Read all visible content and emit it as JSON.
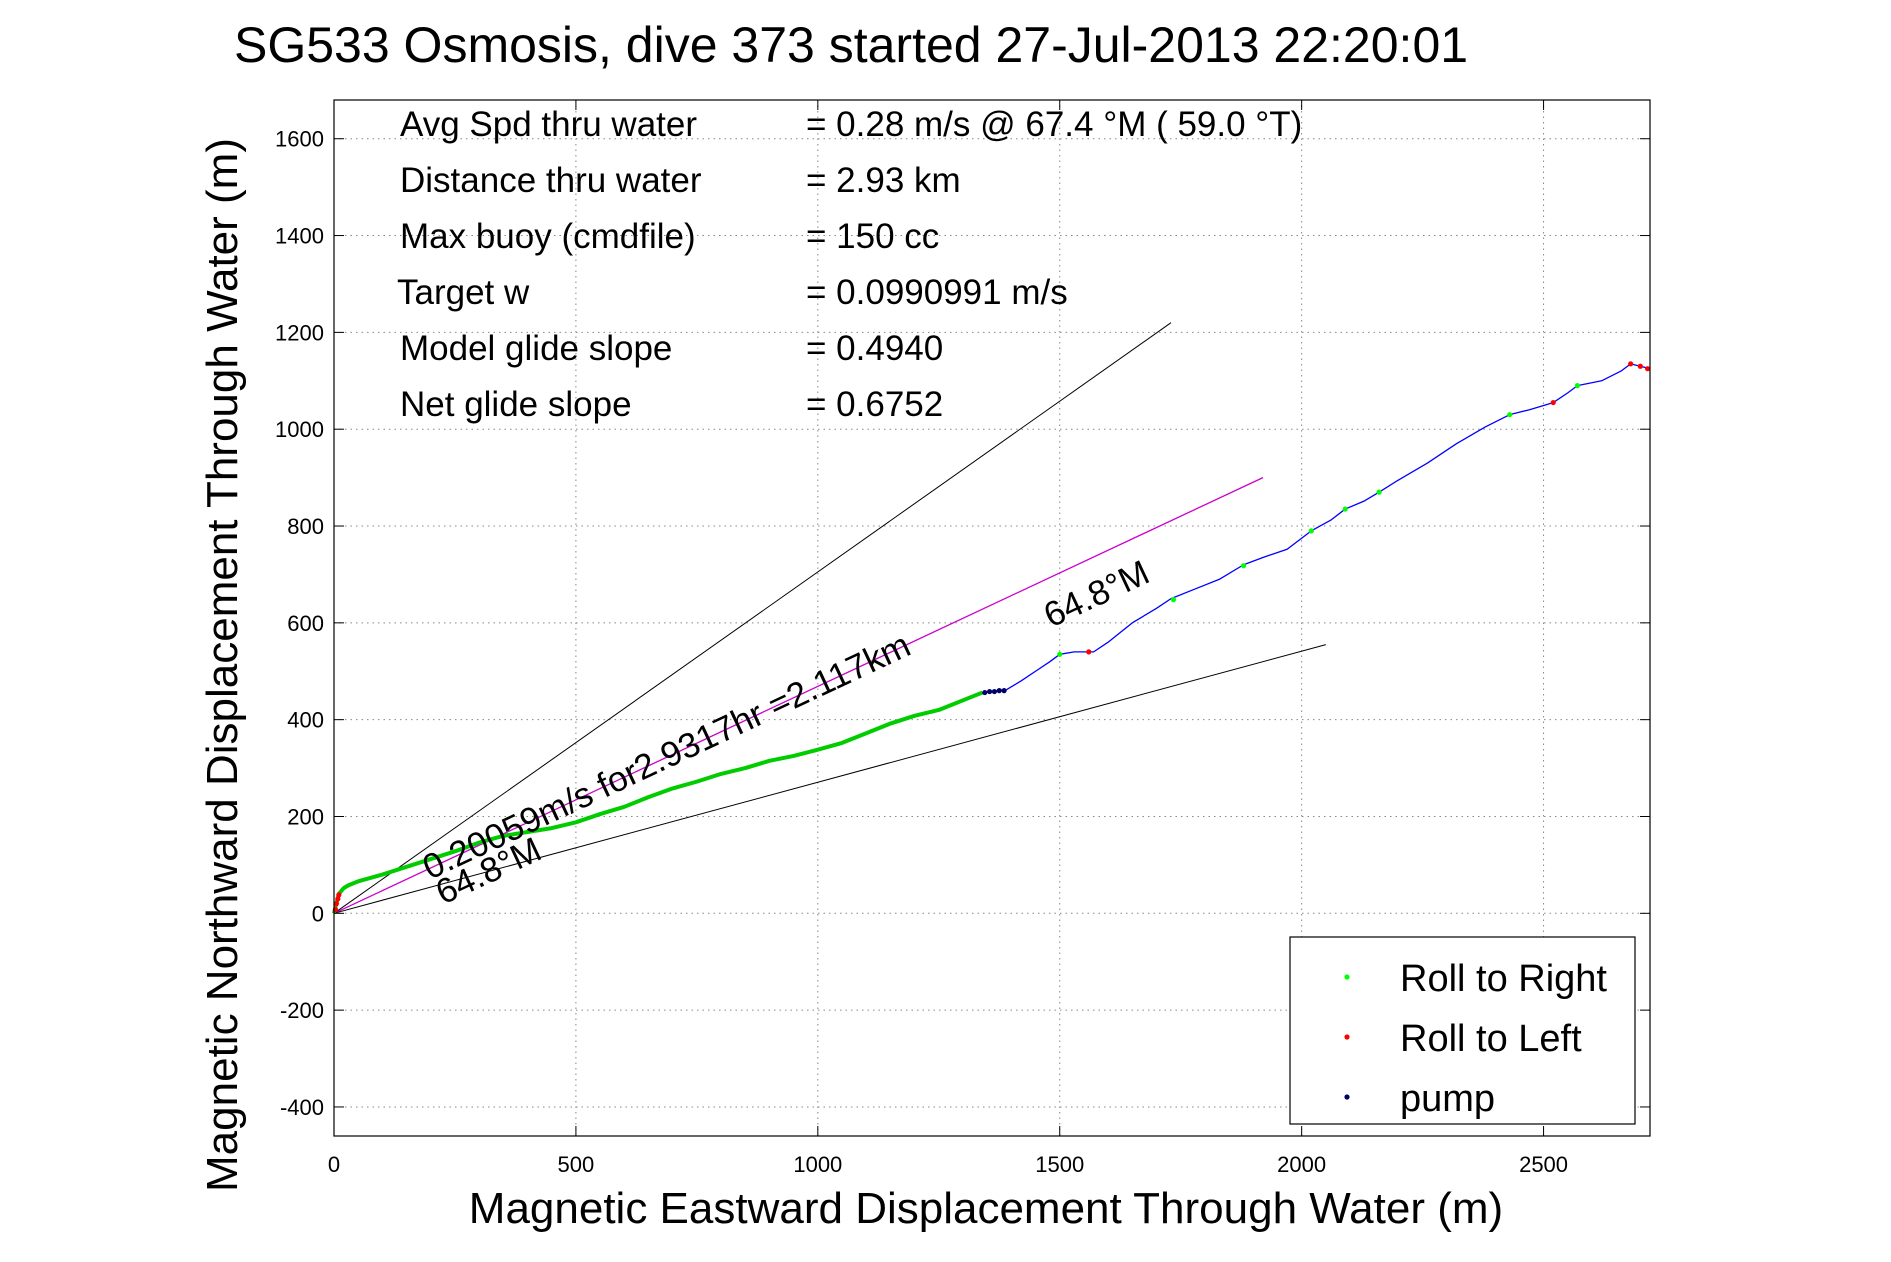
{
  "title": "SG533 Osmosis, dive 373 started 27-Jul-2013 22:20:01",
  "chart_data": {
    "type": "line",
    "title": "SG533 Osmosis, dive 373 started 27-Jul-2013 22:20:01",
    "xlabel": "Magnetic Eastward Displacement Through Water (m)",
    "ylabel": "Magnetic Northward Displacement Through Water (m)",
    "xlim": [
      0,
      2720
    ],
    "ylim": [
      -460,
      1680
    ],
    "xticks": [
      0,
      500,
      1000,
      1500,
      2000,
      2500
    ],
    "yticks": [
      -400,
      -200,
      0,
      200,
      400,
      600,
      800,
      1000,
      1200,
      1400,
      1600
    ],
    "grid": true,
    "legend_position": "bottom-right",
    "info": [
      {
        "label": "Avg Spd thru water",
        "value": "=  0.28 m/s @  67.4 °M ( 59.0 °T)"
      },
      {
        "label": "Distance thru water",
        "value": "=  2.93 km"
      },
      {
        "label": "Max buoy (cmdfile)",
        "value": "= 150 cc"
      },
      {
        "label": "Target w",
        "value": "= 0.0990991 m/s"
      },
      {
        "label": "Model glide slope",
        "value": "= 0.4940"
      },
      {
        "label": "Net glide slope",
        "value": "= 0.6752"
      }
    ],
    "annotations": {
      "current": "0.20059m/s for2.9317hr =2.117km",
      "heading_lower": "64.8°M",
      "heading_upper": "64.8°M"
    },
    "reference_lines": [
      {
        "style": "black",
        "x": [
          0,
          1730
        ],
        "y": [
          0,
          1220
        ]
      },
      {
        "style": "magenta",
        "x": [
          0,
          1920
        ],
        "y": [
          0,
          900
        ]
      },
      {
        "style": "black",
        "x": [
          0,
          2050
        ],
        "y": [
          0,
          555
        ]
      }
    ],
    "series": [
      {
        "name": "track_dive",
        "color": "#00cc00",
        "x": [
          0,
          10,
          20,
          30,
          50,
          100,
          150,
          200,
          250,
          300,
          350,
          400,
          450,
          500,
          550,
          600,
          650,
          700,
          750,
          800,
          850,
          900,
          950,
          1000,
          1050,
          1100,
          1150,
          1200,
          1250,
          1300,
          1340
        ],
        "y": [
          0,
          40,
          52,
          58,
          66,
          80,
          96,
          112,
          128,
          146,
          160,
          168,
          176,
          188,
          205,
          220,
          240,
          258,
          272,
          288,
          300,
          315,
          325,
          338,
          352,
          372,
          392,
          408,
          420,
          440,
          456
        ]
      },
      {
        "name": "track_climb",
        "color": "#0000ff",
        "x": [
          1340,
          1370,
          1390,
          1420,
          1450,
          1480,
          1500,
          1530,
          1570,
          1600,
          1650,
          1700,
          1730,
          1780,
          1830,
          1880,
          1920,
          1970,
          2020,
          2060,
          2090,
          2130,
          2160,
          2200,
          2260,
          2320,
          2380,
          2430,
          2470,
          2520,
          2550,
          2570,
          2620,
          2660,
          2680,
          2700,
          2720
        ],
        "y": [
          456,
          460,
          462,
          480,
          500,
          520,
          535,
          540,
          540,
          560,
          600,
          630,
          650,
          670,
          690,
          720,
          735,
          752,
          790,
          812,
          835,
          852,
          870,
          895,
          930,
          970,
          1005,
          1030,
          1040,
          1055,
          1075,
          1090,
          1100,
          1120,
          1135,
          1130,
          1125
        ]
      },
      {
        "name": "Roll to Right",
        "color": "#00ff00",
        "marker": "dot",
        "x": [
          1500,
          1735,
          1880,
          2020,
          2090,
          2160,
          2430,
          2570
        ],
        "y": [
          535,
          648,
          718,
          790,
          835,
          870,
          1030,
          1090
        ]
      },
      {
        "name": "Roll to Left",
        "color": "#ff0000",
        "marker": "dot",
        "x": [
          3,
          5,
          8,
          10,
          1560,
          2520,
          2680,
          2700,
          2715
        ],
        "y": [
          8,
          20,
          30,
          38,
          540,
          1055,
          1135,
          1130,
          1125
        ]
      },
      {
        "name": "pump",
        "color": "#000066",
        "marker": "dot",
        "x": [
          1345,
          1355,
          1365,
          1375,
          1385
        ],
        "y": [
          456,
          458,
          458,
          460,
          460
        ]
      }
    ],
    "legend": [
      {
        "label": "Roll to Right",
        "color": "#00ff00"
      },
      {
        "label": "Roll to Left",
        "color": "#ff0000"
      },
      {
        "label": "pump",
        "color": "#000066"
      }
    ]
  }
}
